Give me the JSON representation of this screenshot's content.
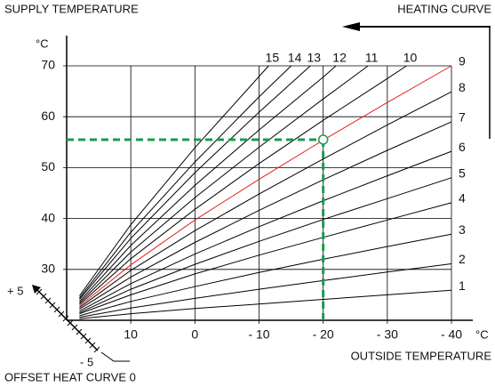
{
  "chart_data": {
    "type": "line",
    "title": "SUPPLY TEMPERATURE",
    "subtitle": "HEATING CURVE",
    "y_unit": "°C",
    "x_unit": "°C",
    "x_label": "OUTSIDE TEMPERATURE",
    "offset_label": "OFFSET HEAT CURVE 0",
    "offset_plus": "+ 5",
    "offset_minus": "- 5",
    "xlim": [
      20,
      -40
    ],
    "ylim": [
      20,
      70
    ],
    "xticks": [
      10,
      0,
      {
        "value": -10,
        "label": "- 10"
      },
      {
        "value": -20,
        "label": "- 20"
      },
      {
        "value": -30,
        "label": "- 30"
      },
      {
        "value": -40,
        "label": "- 40"
      }
    ],
    "yticks": [
      30,
      40,
      50,
      60,
      70
    ],
    "grid": true,
    "series": [
      {
        "name": "1",
        "color": "#000000",
        "x": [
          18,
          10,
          0,
          -10,
          -20,
          -30,
          -40
        ],
        "values": [
          20.3,
          21.3,
          22.3,
          23.2,
          24.1,
          25.0,
          25.9
        ]
      },
      {
        "name": "2",
        "color": "#000000",
        "x": [
          18,
          10,
          0,
          -10,
          -20,
          -30,
          -40
        ],
        "values": [
          20.6,
          22.4,
          24.3,
          26.1,
          27.8,
          29.5,
          31.1
        ]
      },
      {
        "name": "3",
        "color": "#000000",
        "x": [
          18,
          10,
          0,
          -10,
          -20,
          -30,
          -40
        ],
        "values": [
          20.9,
          23.7,
          26.6,
          29.4,
          32.0,
          34.5,
          36.9
        ]
      },
      {
        "name": "4",
        "color": "#000000",
        "x": [
          18,
          10,
          0,
          -10,
          -20,
          -30,
          -40
        ],
        "values": [
          21.3,
          25.0,
          29.1,
          32.8,
          36.3,
          39.7,
          43.1
        ]
      },
      {
        "name": "5",
        "color": "#000000",
        "x": [
          18,
          10,
          0,
          -10,
          -20,
          -30,
          -40
        ],
        "values": [
          21.5,
          26.1,
          31.0,
          35.5,
          39.8,
          43.9,
          48.0
        ]
      },
      {
        "name": "6",
        "color": "#000000",
        "x": [
          18,
          10,
          0,
          -10,
          -20,
          -30,
          -40
        ],
        "values": [
          21.8,
          27.2,
          33.0,
          38.4,
          43.5,
          48.4,
          53.2
        ]
      },
      {
        "name": "7",
        "color": "#000000",
        "x": [
          18,
          10,
          0,
          -10,
          -20,
          -30,
          -40
        ],
        "values": [
          22.2,
          28.5,
          35.3,
          41.6,
          47.6,
          53.4,
          59.0
        ]
      },
      {
        "name": "8",
        "color": "#000000",
        "x": [
          18,
          10,
          0,
          -10,
          -20,
          -30,
          -40
        ],
        "values": [
          22.5,
          29.8,
          37.6,
          44.8,
          51.7,
          58.4,
          64.9
        ]
      },
      {
        "name": "9",
        "color": "#e02020",
        "x": [
          18,
          10,
          0,
          -10,
          -20,
          -30,
          -40
        ],
        "values": [
          22.8,
          30.9,
          39.7,
          47.7,
          55.4,
          62.8,
          70.0
        ]
      },
      {
        "name": "10",
        "color": "#000000",
        "x": [
          18,
          10,
          0,
          -10,
          -20,
          -30,
          -33
        ],
        "values": [
          23.1,
          32.1,
          41.8,
          50.8,
          59.3,
          67.5,
          70
        ]
      },
      {
        "name": "11",
        "color": "#000000",
        "x": [
          18,
          10,
          0,
          -10,
          -20,
          -27
        ],
        "values": [
          23.4,
          33.4,
          44.1,
          54.0,
          63.5,
          70
        ]
      },
      {
        "name": "12",
        "color": "#000000",
        "x": [
          18,
          10,
          0,
          -10,
          -20,
          -22
        ],
        "values": [
          23.7,
          34.7,
          46.5,
          57.4,
          67.8,
          70
        ]
      },
      {
        "name": "13",
        "color": "#000000",
        "x": [
          18,
          10,
          0,
          -10,
          -18
        ],
        "values": [
          24.1,
          36.1,
          49.0,
          60.9,
          70
        ]
      },
      {
        "name": "14",
        "color": "#000000",
        "x": [
          18,
          10,
          0,
          -10,
          -15
        ],
        "values": [
          24.4,
          37.3,
          51.1,
          63.9,
          70
        ]
      },
      {
        "name": "15",
        "color": "#000000",
        "x": [
          18,
          10,
          0,
          -11.5
        ],
        "values": [
          24.8,
          38.8,
          53.9,
          70
        ]
      }
    ],
    "marker": {
      "x": -20,
      "y": 55.5,
      "color": "#1a9b4a"
    }
  }
}
